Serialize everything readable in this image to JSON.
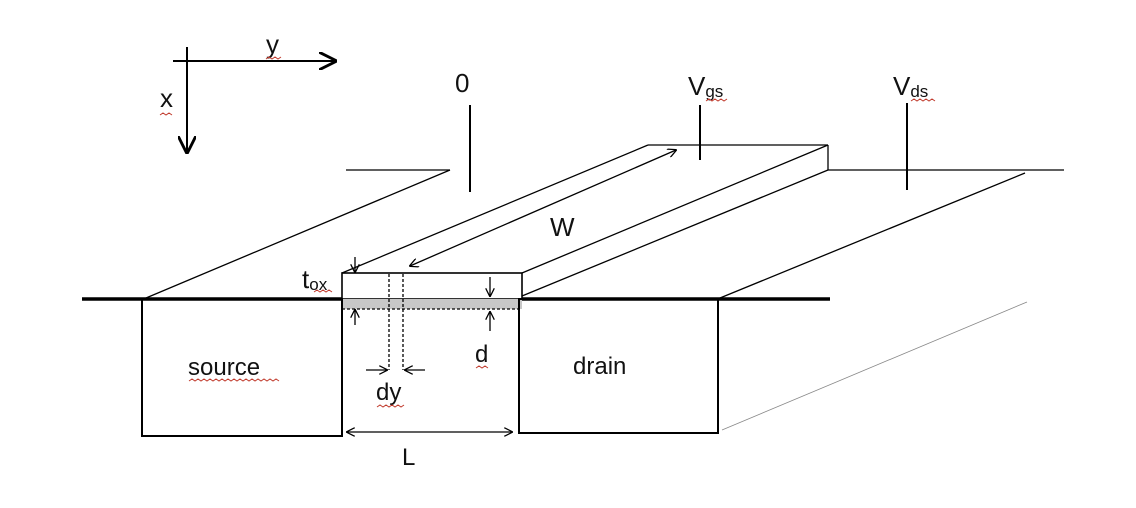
{
  "axes": {
    "x_label": "x",
    "y_label": "y"
  },
  "terminals": {
    "source_voltage": "0",
    "gate_voltage_main": "V",
    "gate_voltage_sub": "gs",
    "drain_voltage_main": "V",
    "drain_voltage_sub": "ds"
  },
  "regions": {
    "source": "source",
    "drain": "drain"
  },
  "dimensions": {
    "width": "W",
    "length": "L",
    "oxide_main": "t",
    "oxide_sub": "ox",
    "depth": "d",
    "slice": "dy"
  },
  "colors": {
    "line": "#000000",
    "channel": "#c8c8c8",
    "spellcheck": "#c0392b"
  }
}
